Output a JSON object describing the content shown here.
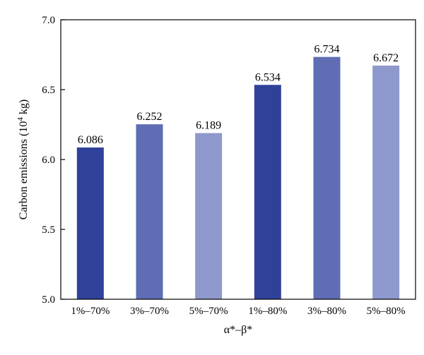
{
  "chart_data": {
    "type": "bar",
    "categories": [
      "1%–70%",
      "3%–70%",
      "5%–70%",
      "1%–80%",
      "3%–80%",
      "5%–80%"
    ],
    "values": [
      6.086,
      6.252,
      6.189,
      6.534,
      6.734,
      6.672
    ],
    "data_labels": [
      "6.086",
      "6.252",
      "6.189",
      "6.534",
      "6.734",
      "6.672"
    ],
    "bar_colors": [
      "#30419a",
      "#5f6db4",
      "#8e98cc",
      "#30419a",
      "#5f6db4",
      "#8e98cc"
    ],
    "xlabel": "α*–β*",
    "ylabel_main": "Carbon emissions (10",
    "ylabel_sup": "4",
    "ylabel_tail": " kg)",
    "ylim": [
      5.0,
      7.0
    ],
    "yticks": [
      5.0,
      5.5,
      6.0,
      6.5,
      7.0
    ],
    "ytick_labels": [
      "5.0",
      "5.5",
      "6.0",
      "6.5",
      "7.0"
    ],
    "grid": false,
    "legend": "none"
  }
}
